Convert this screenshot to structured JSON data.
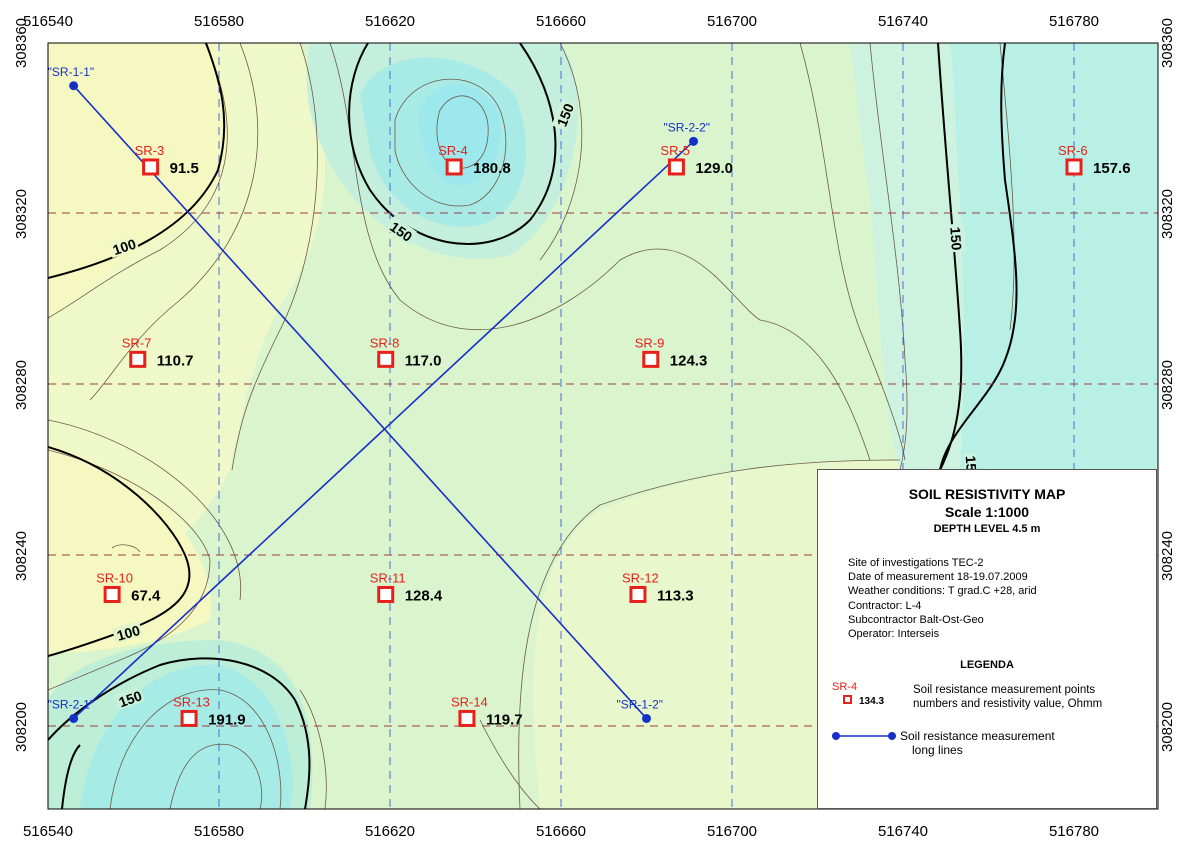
{
  "axes": {
    "x_ticks": [
      "516540",
      "516580",
      "516620",
      "516660",
      "516700",
      "516740",
      "516780"
    ],
    "y_ticks": [
      "308360",
      "308320",
      "308280",
      "308240",
      "308200"
    ]
  },
  "points": [
    {
      "id": "SR-3",
      "value": "91.5",
      "e": 516564,
      "n": 308331
    },
    {
      "id": "SR-4",
      "value": "180.8",
      "e": 516635,
      "n": 308331
    },
    {
      "id": "SR-5",
      "value": "129.0",
      "e": 516687,
      "n": 308331
    },
    {
      "id": "SR-6",
      "value": "157.6",
      "e": 516780,
      "n": 308331
    },
    {
      "id": "SR-7",
      "value": "110.7",
      "e": 516561,
      "n": 308286
    },
    {
      "id": "SR-8",
      "value": "117.0",
      "e": 516619,
      "n": 308286
    },
    {
      "id": "SR-9",
      "value": "124.3",
      "e": 516681,
      "n": 308286
    },
    {
      "id": "SR-10",
      "value": "67.4",
      "e": 516555,
      "n": 308231
    },
    {
      "id": "SR-11",
      "value": "128.4",
      "e": 516619,
      "n": 308231
    },
    {
      "id": "SR-12",
      "value": "113.3",
      "e": 516678,
      "n": 308231
    },
    {
      "id": "SR-13",
      "value": "191.9",
      "e": 516573,
      "n": 308202
    },
    {
      "id": "SR-14",
      "value": "119.7",
      "e": 516638,
      "n": 308202
    }
  ],
  "lines": [
    {
      "name": "SR-1",
      "start_label": "\"SR-1-1\"",
      "end_label": "\"SR-1-2\"",
      "start": {
        "e": 516546,
        "n": 308350
      },
      "end": {
        "e": 516680,
        "n": 308202
      }
    },
    {
      "name": "SR-2",
      "start_label": "\"SR-2-1\"",
      "end_label": "\"SR-2-2\"",
      "start": {
        "e": 516546,
        "n": 308202
      },
      "end": {
        "e": 516691,
        "n": 308337
      }
    }
  ],
  "contour_labels": [
    "100",
    "100",
    "150",
    "150",
    "150",
    "150",
    "150"
  ],
  "legend": {
    "title": "SOIL RESISTIVITY MAP",
    "scale": "Scale 1:1000",
    "depth": "DEPTH LEVEL 4.5 m",
    "site": "Site of investigations TEC-2",
    "date": "Date of measurement  18-19.07.2009",
    "weather": "Weather conditions: T grad.C +28, arid",
    "contractor": "Contractor: L-4",
    "subcontractor": "Subcontractor Balt-Ost-Geo",
    "operator": "Operator: Interseis",
    "heading": "LEGENDA",
    "sample_id": "SR-4",
    "sample_value": "134.3",
    "point_desc_1": "Soil resistance measurement points",
    "point_desc_2": "numbers and resistivity value, Ohmm",
    "line_desc_1": "Soil resistance measurement",
    "line_desc_2": "long lines"
  },
  "colors": {
    "point_marker": "#e8201c",
    "line": "#1530c8",
    "contour_major": "#000000",
    "grid_vertical": "#3e5fd6",
    "grid_horizontal": "#9a3f3f",
    "low_resistivity": "#f6f8c8",
    "mid_resistivity": "#d2f2cc",
    "high_resistivity": "#a0ecee"
  }
}
